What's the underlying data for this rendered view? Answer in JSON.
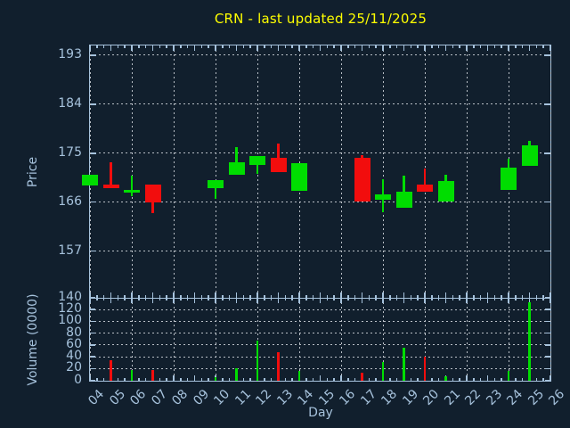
{
  "chart_data": {
    "type": "candlestick",
    "title": "CRN - last updated 25/11/2025",
    "title_color": "#ffff00",
    "xlabel": "Day",
    "price_axis": {
      "label": "Price",
      "ticks": [
        157,
        166,
        175,
        184,
        193
      ],
      "range": [
        148.4,
        194.8
      ],
      "grid": "dashed"
    },
    "volume_axis": {
      "label": "Volume (0000)",
      "ticks": [
        0,
        20,
        40,
        60,
        80,
        100,
        120,
        140
      ],
      "range": [
        0,
        140
      ],
      "grid": "dashed"
    },
    "x_axis": {
      "tick_labels": [
        "04",
        "05",
        "06",
        "07",
        "08",
        "09",
        "10",
        "11",
        "12",
        "13",
        "14",
        "15",
        "16",
        "17",
        "18",
        "19",
        "20",
        "21",
        "22",
        "23",
        "24",
        "25",
        "26"
      ],
      "first_day": 4,
      "last_day": 26,
      "grid_days": [
        4,
        6,
        8,
        10,
        12,
        14,
        16,
        18,
        20,
        22,
        24,
        26
      ],
      "minor_ticks_per_day": 3
    },
    "series": [
      {
        "day": 4,
        "open": 169.0,
        "high": 171.0,
        "low": 169.0,
        "close": 171.0,
        "volume": 0
      },
      {
        "day": 5,
        "open": 169.3,
        "high": 173.3,
        "low": 168.5,
        "close": 168.5,
        "volume": 35
      },
      {
        "day": 6,
        "open": 167.8,
        "high": 170.9,
        "low": 167.1,
        "close": 168.3,
        "volume": 17
      },
      {
        "day": 7,
        "open": 169.3,
        "high": 169.3,
        "low": 164.0,
        "close": 166.0,
        "volume": 18
      },
      {
        "day": 10,
        "open": 168.5,
        "high": 170.0,
        "low": 166.6,
        "close": 170.0,
        "volume": 6
      },
      {
        "day": 11,
        "open": 171.1,
        "high": 176.1,
        "low": 171.1,
        "close": 173.4,
        "volume": 20
      },
      {
        "day": 12,
        "open": 172.8,
        "high": 174.5,
        "low": 171.2,
        "close": 174.5,
        "volume": 67
      },
      {
        "day": 13,
        "open": 174.2,
        "high": 176.8,
        "low": 171.5,
        "close": 171.5,
        "volume": 48
      },
      {
        "day": 14,
        "open": 168.1,
        "high": 173.1,
        "low": 168.1,
        "close": 173.1,
        "volume": 16
      },
      {
        "day": 17,
        "open": 174.1,
        "high": 174.6,
        "low": 166.1,
        "close": 166.1,
        "volume": 13
      },
      {
        "day": 18,
        "open": 166.4,
        "high": 170.2,
        "low": 164.1,
        "close": 167.4,
        "volume": 31
      },
      {
        "day": 19,
        "open": 165.0,
        "high": 170.8,
        "low": 165.0,
        "close": 167.9,
        "volume": 56
      },
      {
        "day": 20,
        "open": 169.3,
        "high": 172.1,
        "low": 167.9,
        "close": 167.9,
        "volume": 41
      },
      {
        "day": 21,
        "open": 166.1,
        "high": 171.0,
        "low": 166.1,
        "close": 169.9,
        "volume": 7
      },
      {
        "day": 24,
        "open": 168.3,
        "high": 173.9,
        "low": 168.3,
        "close": 172.4,
        "volume": 16
      },
      {
        "day": 25,
        "open": 172.6,
        "high": 177.2,
        "low": 172.6,
        "close": 176.5,
        "volume": 132
      }
    ],
    "colors": {
      "up": "#00dd00",
      "down": "#f20d0d",
      "axis": "#a6c2dc",
      "grid": "#b9bfc6",
      "title": "#ffff00",
      "background": "#111f2d"
    }
  }
}
